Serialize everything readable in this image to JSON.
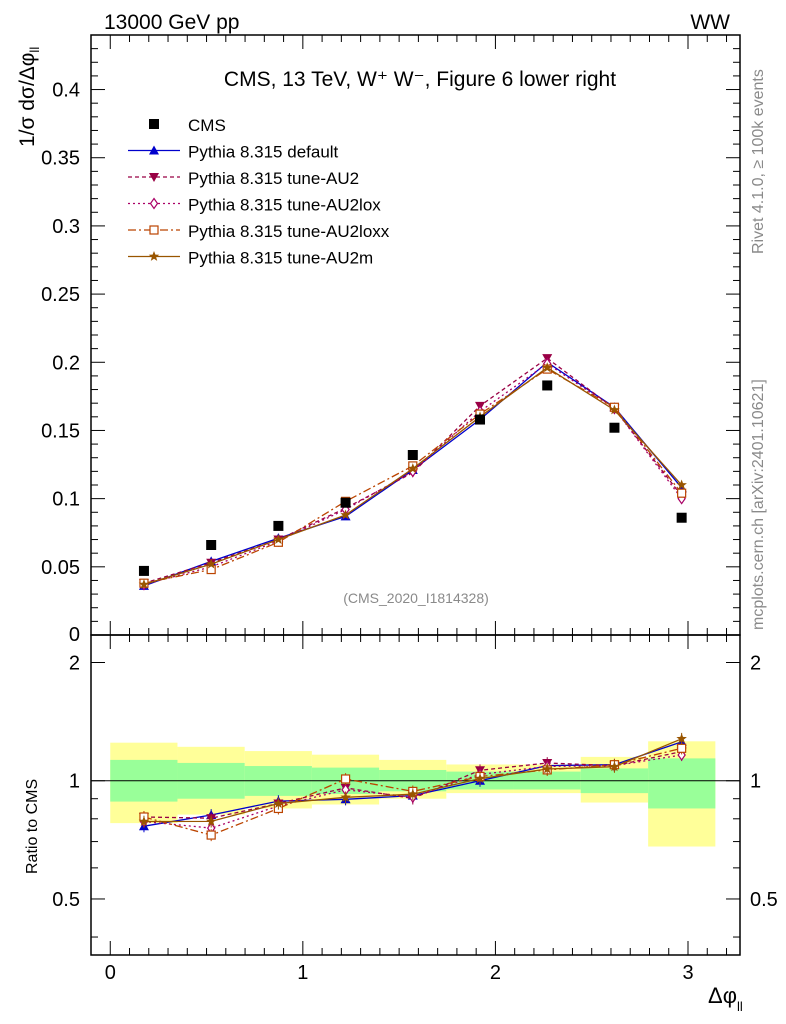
{
  "header": {
    "energy": "13000 GeV pp",
    "process": "WW"
  },
  "side": {
    "rivet": "Rivet 4.1.0, ≥ 100k events",
    "mcplots": "mcplots.cern.ch [arXiv:2401.10621]"
  },
  "chart_data": {
    "type": "line",
    "title": "CMS, 13 TeV, W⁺ W⁻, Figure 6 lower right",
    "watermark": "(CMS_2020_I1814328)",
    "xlabel": "Δφ",
    "xlabel_sub": "ll",
    "ylabel": "1/σ dσ/Δφ",
    "ylabel_sub": "ll",
    "ratio_ylabel": "Ratio to CMS",
    "xlim": [
      -0.1,
      3.27
    ],
    "ylim": [
      0,
      0.44
    ],
    "ratio_ylim": [
      0.36,
      2.35
    ],
    "x_ticks": [
      "0",
      "1",
      "2",
      "3"
    ],
    "y_ticks": [
      "0.05",
      "0.1",
      "0.15",
      "0.2",
      "0.25",
      "0.3",
      "0.35",
      "0.4"
    ],
    "ratio_ticks": [
      "0.5",
      "1",
      "2"
    ],
    "bin_edges": [
      0,
      0.349,
      0.698,
      1.047,
      1.396,
      1.745,
      2.094,
      2.443,
      2.793,
      3.142
    ],
    "x": [
      0.175,
      0.524,
      0.873,
      1.222,
      1.571,
      1.92,
      2.269,
      2.618,
      2.967
    ],
    "data": {
      "name": "CMS",
      "values": [
        0.047,
        0.066,
        0.08,
        0.097,
        0.132,
        0.158,
        0.183,
        0.152,
        0.086
      ],
      "band_inner": [
        [
          0.885,
          1.13
        ],
        [
          0.9,
          1.11
        ],
        [
          0.915,
          1.09
        ],
        [
          0.925,
          1.08
        ],
        [
          0.94,
          1.065
        ],
        [
          0.95,
          1.055
        ],
        [
          0.95,
          1.055
        ],
        [
          0.93,
          1.075
        ],
        [
          0.85,
          1.14
        ]
      ],
      "band_outer": [
        [
          0.78,
          1.25
        ],
        [
          0.82,
          1.22
        ],
        [
          0.85,
          1.19
        ],
        [
          0.87,
          1.165
        ],
        [
          0.9,
          1.13
        ],
        [
          0.93,
          1.1
        ],
        [
          0.93,
          1.1
        ],
        [
          0.88,
          1.15
        ],
        [
          0.68,
          1.26
        ]
      ]
    },
    "series": [
      {
        "name": "Pythia 8.315 default",
        "color": "#0000cc",
        "marker": "triangle-up",
        "dash": "",
        "values": [
          0.036,
          0.054,
          0.071,
          0.087,
          0.121,
          0.158,
          0.2,
          0.167,
          0.108
        ]
      },
      {
        "name": "Pythia 8.315 tune-AU2",
        "color": "#990044",
        "marker": "triangle-down",
        "dash": "4,3",
        "values": [
          0.038,
          0.053,
          0.07,
          0.093,
          0.119,
          0.168,
          0.203,
          0.166,
          0.102
        ]
      },
      {
        "name": "Pythia 8.315 tune-AU2lox",
        "color": "#aa0066",
        "marker": "diamond-open",
        "dash": "2,3",
        "values": [
          0.037,
          0.05,
          0.069,
          0.092,
          0.12,
          0.164,
          0.199,
          0.166,
          0.1
        ]
      },
      {
        "name": "Pythia 8.315 tune-AU2loxx",
        "color": "#bb4400",
        "marker": "square-open",
        "dash": "8,3,2,3",
        "values": [
          0.038,
          0.048,
          0.068,
          0.098,
          0.124,
          0.162,
          0.195,
          0.167,
          0.104
        ]
      },
      {
        "name": "Pythia 8.315 tune-AU2m",
        "color": "#995500",
        "marker": "star",
        "dash": "",
        "values": [
          0.037,
          0.052,
          0.07,
          0.088,
          0.122,
          0.16,
          0.196,
          0.165,
          0.11
        ]
      }
    ]
  }
}
